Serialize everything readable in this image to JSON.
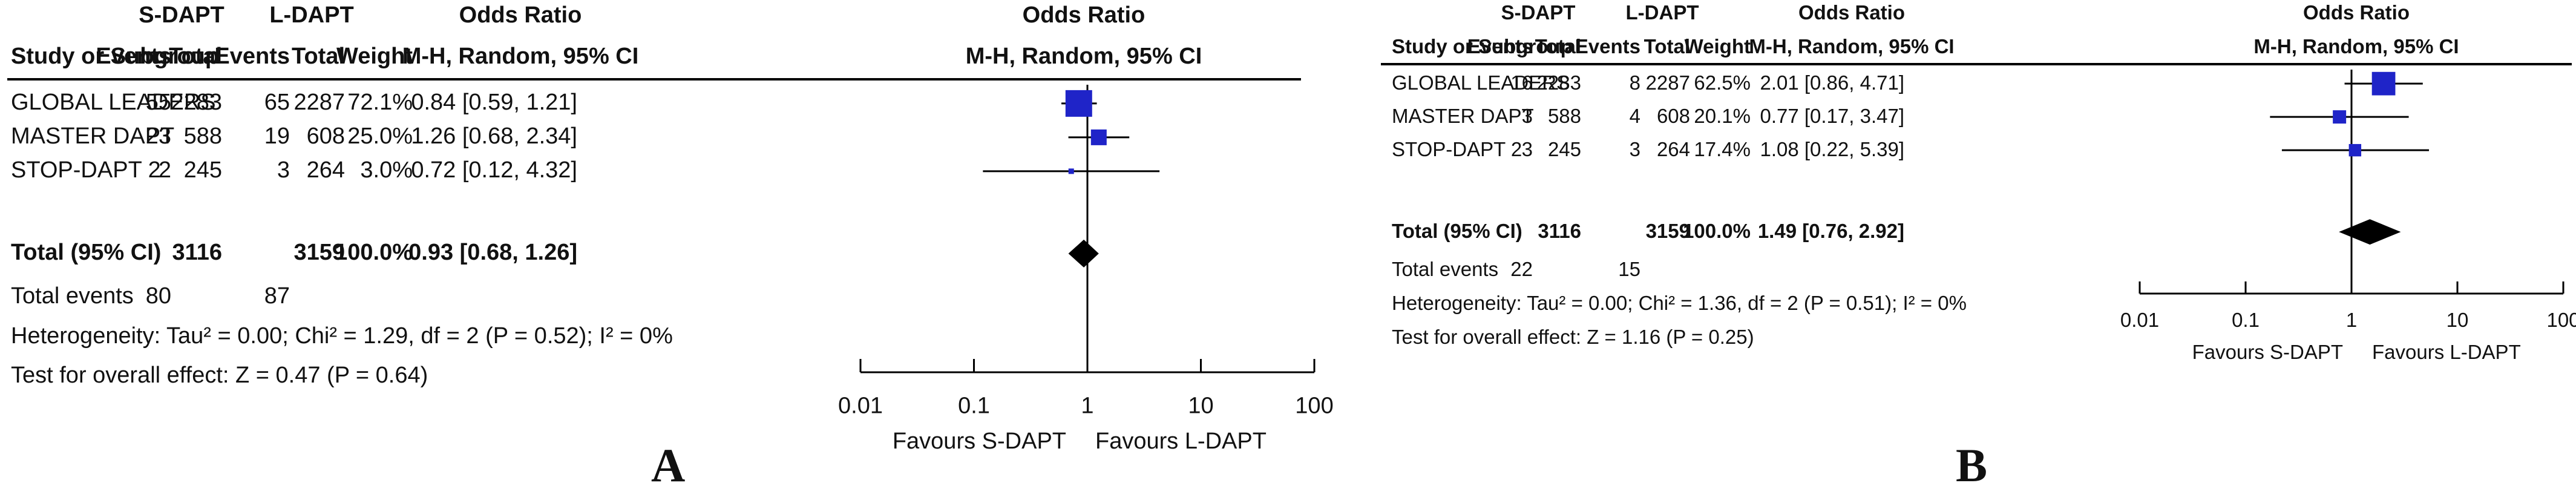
{
  "chart_data": [
    {
      "type": "forest",
      "panel_label": "A",
      "group_headers": {
        "experimental": "S-DAPT",
        "control": "L-DAPT"
      },
      "column_headers": {
        "study": "Study or Subgroup",
        "events": "Events",
        "total": "Total",
        "weight": "Weight",
        "or_title": "Odds Ratio",
        "or_method": "M-H, Random, 95% CI"
      },
      "plot_header": {
        "title": "Odds Ratio",
        "method": "M-H, Random, 95% CI"
      },
      "studies": [
        {
          "name": "GLOBAL LEADERS",
          "e_events": "55",
          "e_total": "2283",
          "c_events": "65",
          "c_total": "2287",
          "weight_label": "72.1%",
          "ci_label": "0.84 [0.59, 1.21]",
          "or": 0.84,
          "lo": 0.59,
          "hi": 1.21,
          "weight": 72.1
        },
        {
          "name": "MASTER DAPT",
          "e_events": "23",
          "e_total": "588",
          "c_events": "19",
          "c_total": "608",
          "weight_label": "25.0%",
          "ci_label": "1.26 [0.68, 2.34]",
          "or": 1.26,
          "lo": 0.68,
          "hi": 2.34,
          "weight": 25.0
        },
        {
          "name": "STOP-DAPT 2",
          "e_events": "2",
          "e_total": "245",
          "c_events": "3",
          "c_total": "264",
          "weight_label": "3.0%",
          "ci_label": "0.72 [0.12, 4.32]",
          "or": 0.72,
          "lo": 0.12,
          "hi": 4.32,
          "weight": 3.0
        }
      ],
      "total": {
        "label": "Total (95% CI)",
        "e_total": "3116",
        "c_total": "3159",
        "weight_label": "100.0%",
        "ci_label": "0.93 [0.68, 1.26]",
        "or": 0.93,
        "lo": 0.68,
        "hi": 1.26
      },
      "total_events": {
        "label": "Total events",
        "e": "80",
        "c": "87"
      },
      "heterogeneity": "Heterogeneity: Tau² = 0.00; Chi² = 1.29, df = 2 (P = 0.52); I² = 0%",
      "overall_effect": "Test for overall effect: Z = 0.47 (P = 0.64)",
      "x_scale": "log",
      "x_ticks": [
        "0.01",
        "0.1",
        "1",
        "10",
        "100"
      ],
      "x_range": [
        0.01,
        100
      ],
      "favours_left": "Favours S-DAPT",
      "favours_right": "Favours L-DAPT",
      "square_color": "#1f24c8"
    },
    {
      "type": "forest",
      "panel_label": "B",
      "group_headers": {
        "experimental": "S-DAPT",
        "control": "L-DAPT"
      },
      "column_headers": {
        "study": "Study or Subgroup",
        "events": "Events",
        "total": "Total",
        "weight": "Weight",
        "or_title": "Odds Ratio",
        "or_method": "M-H, Random, 95% CI"
      },
      "plot_header": {
        "title": "Odds Ratio",
        "method": "M-H, Random, 95% CI"
      },
      "studies": [
        {
          "name": "GLOBAL LEADERS",
          "e_events": "16",
          "e_total": "2283",
          "c_events": "8",
          "c_total": "2287",
          "weight_label": "62.5%",
          "ci_label": "2.01 [0.86, 4.71]",
          "or": 2.01,
          "lo": 0.86,
          "hi": 4.71,
          "weight": 62.5
        },
        {
          "name": "MASTER DAPT",
          "e_events": "3",
          "e_total": "588",
          "c_events": "4",
          "c_total": "608",
          "weight_label": "20.1%",
          "ci_label": "0.77 [0.17, 3.47]",
          "or": 0.77,
          "lo": 0.17,
          "hi": 3.47,
          "weight": 20.1
        },
        {
          "name": "STOP-DAPT 2",
          "e_events": "3",
          "e_total": "245",
          "c_events": "3",
          "c_total": "264",
          "weight_label": "17.4%",
          "ci_label": "1.08 [0.22, 5.39]",
          "or": 1.08,
          "lo": 0.22,
          "hi": 5.39,
          "weight": 17.4
        }
      ],
      "total": {
        "label": "Total (95% CI)",
        "e_total": "3116",
        "c_total": "3159",
        "weight_label": "100.0%",
        "ci_label": "1.49 [0.76, 2.92]",
        "or": 1.49,
        "lo": 0.76,
        "hi": 2.92
      },
      "total_events": {
        "label": "Total events",
        "e": "22",
        "c": "15"
      },
      "heterogeneity": "Heterogeneity: Tau² = 0.00; Chi² = 1.36, df = 2 (P = 0.51); I² = 0%",
      "overall_effect": "Test for overall effect: Z = 1.16 (P = 0.25)",
      "x_scale": "log",
      "x_ticks": [
        "0.01",
        "0.1",
        "1",
        "10",
        "100"
      ],
      "x_range": [
        0.01,
        100
      ],
      "favours_left": "Favours S-DAPT",
      "favours_right": "Favours L-DAPT",
      "square_color": "#1f24c8"
    }
  ]
}
